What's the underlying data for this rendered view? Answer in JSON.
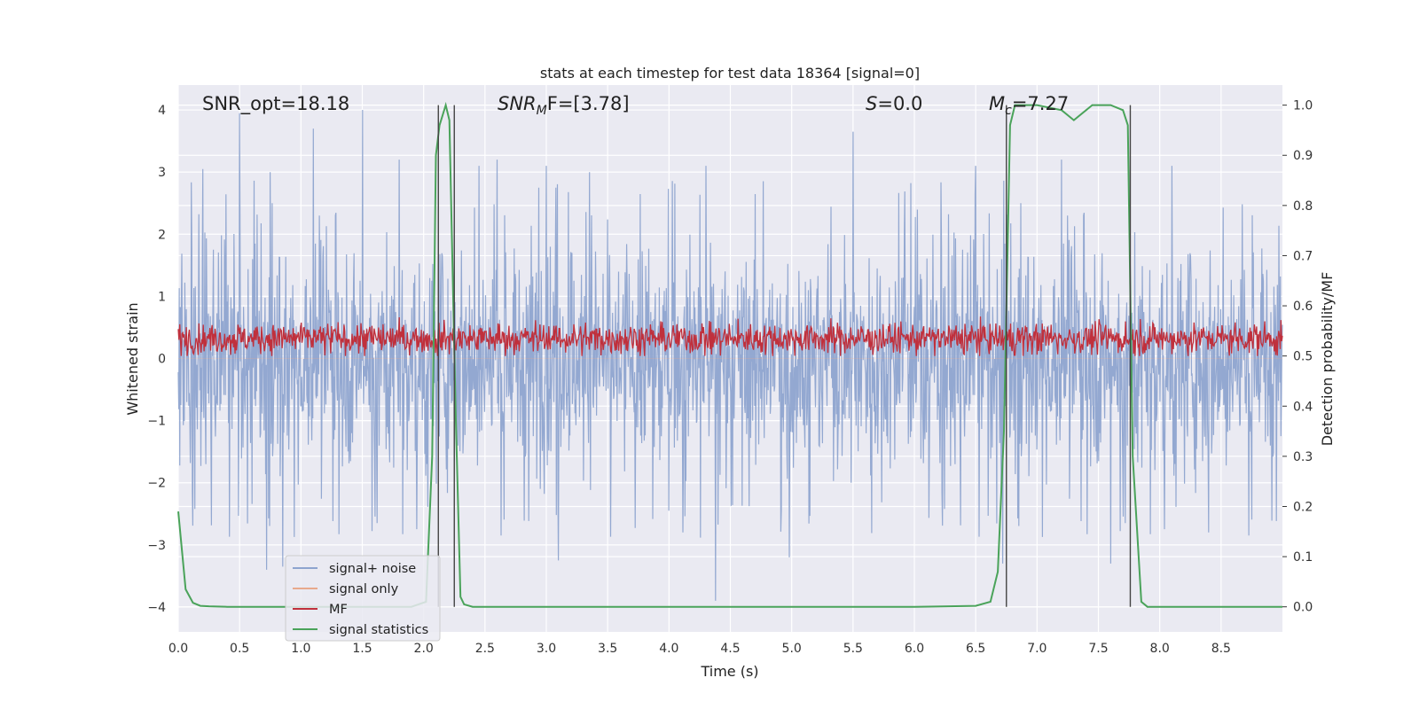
{
  "chart_data": {
    "type": "line",
    "title": "stats at each timestep for test data 18364 [signal=0]",
    "xlabel": "Time (s)",
    "ylabel_left": "Whitened strain",
    "ylabel_right": "Detection probability/MF",
    "xlim": [
      0,
      9
    ],
    "ylim_left": [
      -4.4,
      4.4
    ],
    "ylim_right": [
      -0.05,
      1.04
    ],
    "x_ticks": [
      "0.0",
      "0.5",
      "1.0",
      "1.5",
      "2.0",
      "2.5",
      "3.0",
      "3.5",
      "4.0",
      "4.5",
      "5.0",
      "5.5",
      "6.0",
      "6.5",
      "7.0",
      "7.5",
      "8.0",
      "8.5"
    ],
    "x_tick_values": [
      0,
      0.5,
      1.0,
      1.5,
      2.0,
      2.5,
      3.0,
      3.5,
      4.0,
      4.5,
      5.0,
      5.5,
      6.0,
      6.5,
      7.0,
      7.5,
      8.0,
      8.5
    ],
    "y_left_ticks": [
      "4",
      "3",
      "2",
      "1",
      "0",
      "−1",
      "−2",
      "−3",
      "−4"
    ],
    "y_left_tick_values": [
      4,
      3,
      2,
      1,
      0,
      -1,
      -2,
      -3,
      -4
    ],
    "y_right_ticks": [
      "1.0",
      "0.9",
      "0.8",
      "0.7",
      "0.6",
      "0.5",
      "0.4",
      "0.3",
      "0.2",
      "0.1",
      "0.0"
    ],
    "y_right_tick_values": [
      1.0,
      0.9,
      0.8,
      0.7,
      0.6,
      0.5,
      0.4,
      0.3,
      0.2,
      0.1,
      0.0
    ],
    "annotations": {
      "snr_opt": "SNR_opt=18.18",
      "snr_mf_base": "SNR",
      "snr_mf_sub": "M",
      "snr_mf_rest": "F=[3.78]",
      "s_sym": "S",
      "s_rest": "=0.0",
      "mc_sym": "M",
      "mc_sub": "c",
      "mc_rest": "=7.27"
    },
    "legend": [
      {
        "label": "signal+ noise",
        "color": "#8ea4cf"
      },
      {
        "label": "signal only",
        "color": "#e8a98c"
      },
      {
        "label": "MF",
        "color": "#c0303c"
      },
      {
        "label": "signal statistics",
        "color": "#4aa35a"
      }
    ],
    "legend_position": "lower-left",
    "vertical_markers_x": [
      2.12,
      2.25,
      6.75,
      7.76
    ],
    "series": [
      {
        "name": "signal statistics",
        "axis": "right",
        "x": [
          0.0,
          0.06,
          0.12,
          0.18,
          0.25,
          0.4,
          1.0,
          1.5,
          1.9,
          2.02,
          2.07,
          2.1,
          2.13,
          2.18,
          2.21,
          2.26,
          2.3,
          2.33,
          2.4,
          3.0,
          4.0,
          5.0,
          6.0,
          6.5,
          6.62,
          6.68,
          6.73,
          6.78,
          6.82,
          6.88,
          7.0,
          7.2,
          7.3,
          7.45,
          7.6,
          7.7,
          7.74,
          7.78,
          7.85,
          7.9,
          8.0,
          8.3,
          9.0
        ],
        "y": [
          0.19,
          0.035,
          0.008,
          0.002,
          0.001,
          0.0,
          0.0,
          0.0,
          0.0,
          0.01,
          0.3,
          0.9,
          0.96,
          1.0,
          0.97,
          0.4,
          0.02,
          0.005,
          0.0,
          0.0,
          0.0,
          0.0,
          0.0,
          0.002,
          0.01,
          0.07,
          0.35,
          0.96,
          1.0,
          1.0,
          1.0,
          0.99,
          0.97,
          1.0,
          1.0,
          0.99,
          0.96,
          0.3,
          0.01,
          0.0,
          0.0,
          0.0,
          0.0
        ]
      },
      {
        "name": "signal+ noise",
        "axis": "left",
        "description_values": {
          "typical_abs_max": 2.3,
          "peak_max": 4.0,
          "peak_min": -3.9
        },
        "peaks": [
          {
            "x": 0.2,
            "y": 3.05
          },
          {
            "x": 0.5,
            "y": 3.95
          },
          {
            "x": 0.75,
            "y": 3.0
          },
          {
            "x": 1.1,
            "y": 3.7
          },
          {
            "x": 1.5,
            "y": 4.0
          },
          {
            "x": 1.8,
            "y": 3.2
          },
          {
            "x": 2.45,
            "y": 3.1
          },
          {
            "x": 2.6,
            "y": 3.2
          },
          {
            "x": 3.0,
            "y": 3.1
          },
          {
            "x": 3.35,
            "y": 3.0
          },
          {
            "x": 4.3,
            "y": 3.1
          },
          {
            "x": 5.5,
            "y": 3.65
          },
          {
            "x": 6.5,
            "y": 3.1
          },
          {
            "x": 7.2,
            "y": 3.2
          },
          {
            "x": 8.1,
            "y": 3.1
          },
          {
            "x": 0.72,
            "y": -3.4
          },
          {
            "x": 0.85,
            "y": -3.35
          },
          {
            "x": 3.1,
            "y": -3.25
          },
          {
            "x": 4.38,
            "y": -3.9
          },
          {
            "x": 4.98,
            "y": -3.2
          },
          {
            "x": 5.5,
            "y": -3.45
          },
          {
            "x": 6.72,
            "y": -3.3
          },
          {
            "x": 7.6,
            "y": -3.3
          },
          {
            "x": 8.4,
            "y": -2.8
          }
        ]
      },
      {
        "name": "MF",
        "axis": "right",
        "description_values": {
          "baseline": 0.535,
          "min": 0.5,
          "max": 0.6
        }
      },
      {
        "name": "signal only",
        "axis": "left",
        "description_values": {
          "constant": 0.0
        }
      }
    ]
  }
}
